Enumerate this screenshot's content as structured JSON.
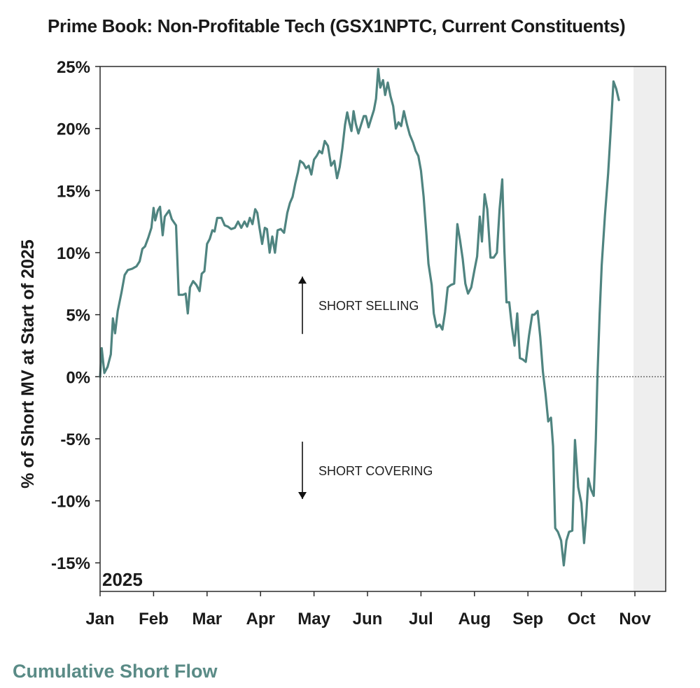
{
  "chart_data": {
    "type": "line",
    "title": "Prime Book: Non-Profitable Tech (GSX1NPTC, Current Constituents)",
    "ylabel": "% of Short MV at Start of 2025",
    "xlabel": "",
    "year_label": "2025",
    "footer": "Cumulative Short Flow",
    "ylim": [
      -17.3,
      25
    ],
    "yticks": [
      25,
      20,
      15,
      10,
      5,
      0,
      -5,
      -10,
      -15
    ],
    "ytick_labels": [
      "25%",
      "20%",
      "15%",
      "10%",
      "5%",
      "0%",
      "-5%",
      "-10%",
      "-15%"
    ],
    "xlim": [
      0,
      11.35
    ],
    "xticks": [
      0,
      1,
      2,
      3,
      4,
      5,
      6,
      7,
      8,
      9,
      10
    ],
    "xtick_labels": [
      "Jan",
      "Feb",
      "Mar",
      "Apr",
      "May",
      "Jun",
      "Jul",
      "Aug",
      "Sep",
      "Oct",
      "Nov"
    ],
    "shaded_region": [
      10,
      11.35
    ],
    "zero_line": true,
    "annotations": [
      {
        "text": "SHORT SELLING",
        "direction": "up",
        "x": 4.05,
        "y": 5.7
      },
      {
        "text": "SHORT COVERING",
        "direction": "down",
        "x": 4.05,
        "y": -7.6
      }
    ],
    "line_color": "#4f8480",
    "series": [
      {
        "points": [
          [
            0.0,
            0.0
          ],
          [
            0.03,
            2.3
          ],
          [
            0.08,
            0.3
          ],
          [
            0.14,
            0.8
          ],
          [
            0.2,
            1.8
          ],
          [
            0.24,
            4.7
          ],
          [
            0.28,
            3.5
          ],
          [
            0.33,
            5.3
          ],
          [
            0.4,
            6.8
          ],
          [
            0.46,
            8.2
          ],
          [
            0.52,
            8.6
          ],
          [
            0.6,
            8.7
          ],
          [
            0.68,
            8.9
          ],
          [
            0.74,
            9.3
          ],
          [
            0.79,
            10.3
          ],
          [
            0.84,
            10.5
          ],
          [
            0.9,
            11.2
          ],
          [
            0.96,
            12.0
          ],
          [
            1.0,
            13.6
          ],
          [
            1.03,
            12.6
          ],
          [
            1.08,
            13.4
          ],
          [
            1.12,
            13.7
          ],
          [
            1.17,
            11.4
          ],
          [
            1.21,
            12.9
          ],
          [
            1.29,
            13.4
          ],
          [
            1.34,
            12.7
          ],
          [
            1.42,
            12.2
          ],
          [
            1.47,
            6.6
          ],
          [
            1.55,
            6.6
          ],
          [
            1.6,
            6.7
          ],
          [
            1.64,
            5.1
          ],
          [
            1.68,
            7.2
          ],
          [
            1.74,
            7.7
          ],
          [
            1.8,
            7.4
          ],
          [
            1.86,
            6.9
          ],
          [
            1.9,
            8.3
          ],
          [
            1.95,
            8.5
          ],
          [
            2.0,
            10.7
          ],
          [
            2.05,
            11.1
          ],
          [
            2.1,
            11.8
          ],
          [
            2.14,
            11.7
          ],
          [
            2.19,
            12.8
          ],
          [
            2.27,
            12.8
          ],
          [
            2.33,
            12.2
          ],
          [
            2.39,
            12.1
          ],
          [
            2.45,
            11.9
          ],
          [
            2.52,
            12.0
          ],
          [
            2.58,
            12.5
          ],
          [
            2.64,
            12.0
          ],
          [
            2.7,
            12.5
          ],
          [
            2.75,
            12.1
          ],
          [
            2.8,
            12.8
          ],
          [
            2.85,
            12.3
          ],
          [
            2.9,
            13.5
          ],
          [
            2.94,
            13.2
          ],
          [
            2.98,
            12.0
          ],
          [
            3.03,
            10.7
          ],
          [
            3.08,
            12.0
          ],
          [
            3.12,
            11.9
          ],
          [
            3.17,
            10.0
          ],
          [
            3.22,
            11.3
          ],
          [
            3.27,
            10.0
          ],
          [
            3.32,
            11.8
          ],
          [
            3.38,
            11.9
          ],
          [
            3.44,
            11.6
          ],
          [
            3.5,
            13.2
          ],
          [
            3.55,
            14.0
          ],
          [
            3.6,
            14.5
          ],
          [
            3.65,
            15.6
          ],
          [
            3.7,
            16.5
          ],
          [
            3.74,
            17.4
          ],
          [
            3.8,
            17.2
          ],
          [
            3.85,
            16.8
          ],
          [
            3.9,
            17.0
          ],
          [
            3.95,
            16.3
          ],
          [
            4.0,
            17.5
          ],
          [
            4.05,
            17.8
          ],
          [
            4.1,
            18.2
          ],
          [
            4.15,
            18.0
          ],
          [
            4.2,
            19.0
          ],
          [
            4.26,
            18.6
          ],
          [
            4.32,
            17.0
          ],
          [
            4.38,
            17.4
          ],
          [
            4.43,
            16.0
          ],
          [
            4.48,
            16.9
          ],
          [
            4.53,
            18.4
          ],
          [
            4.58,
            20.3
          ],
          [
            4.62,
            21.3
          ],
          [
            4.66,
            20.5
          ],
          [
            4.7,
            19.8
          ],
          [
            4.74,
            21.4
          ],
          [
            4.78,
            20.4
          ],
          [
            4.83,
            19.6
          ],
          [
            4.88,
            20.3
          ],
          [
            4.93,
            21.0
          ],
          [
            4.97,
            21.0
          ],
          [
            5.02,
            20.1
          ],
          [
            5.07,
            20.8
          ],
          [
            5.12,
            21.5
          ],
          [
            5.16,
            22.4
          ],
          [
            5.2,
            24.8
          ],
          [
            5.24,
            23.3
          ],
          [
            5.29,
            23.9
          ],
          [
            5.33,
            22.7
          ],
          [
            5.38,
            23.7
          ],
          [
            5.43,
            22.6
          ],
          [
            5.48,
            21.8
          ],
          [
            5.53,
            20.0
          ],
          [
            5.58,
            20.5
          ],
          [
            5.63,
            20.2
          ],
          [
            5.68,
            21.4
          ],
          [
            5.74,
            20.3
          ],
          [
            5.79,
            19.5
          ],
          [
            5.85,
            18.9
          ],
          [
            5.9,
            18.2
          ],
          [
            5.95,
            17.8
          ],
          [
            6.0,
            16.6
          ],
          [
            6.05,
            14.5
          ],
          [
            6.1,
            11.6
          ],
          [
            6.14,
            9.1
          ],
          [
            6.2,
            7.4
          ],
          [
            6.24,
            5.1
          ],
          [
            6.29,
            4.0
          ],
          [
            6.35,
            4.2
          ],
          [
            6.4,
            3.8
          ],
          [
            6.45,
            5.2
          ],
          [
            6.5,
            7.2
          ],
          [
            6.56,
            7.4
          ],
          [
            6.62,
            7.5
          ],
          [
            6.68,
            12.3
          ],
          [
            6.73,
            11.0
          ],
          [
            6.78,
            9.5
          ],
          [
            6.83,
            7.5
          ],
          [
            6.88,
            6.7
          ],
          [
            6.94,
            7.2
          ],
          [
            7.0,
            8.6
          ],
          [
            7.05,
            9.7
          ],
          [
            7.1,
            12.9
          ],
          [
            7.14,
            10.9
          ],
          [
            7.19,
            14.7
          ],
          [
            7.24,
            13.5
          ],
          [
            7.3,
            9.6
          ],
          [
            7.36,
            9.6
          ],
          [
            7.42,
            10.0
          ],
          [
            7.47,
            13.5
          ],
          [
            7.52,
            15.9
          ],
          [
            7.56,
            10.1
          ],
          [
            7.6,
            6.0
          ],
          [
            7.65,
            6.0
          ],
          [
            7.7,
            4.0
          ],
          [
            7.75,
            2.5
          ],
          [
            7.8,
            5.1
          ],
          [
            7.85,
            1.5
          ],
          [
            7.9,
            1.4
          ],
          [
            7.96,
            1.2
          ],
          [
            8.02,
            3.3
          ],
          [
            8.08,
            5.0
          ],
          [
            8.12,
            5.0
          ],
          [
            8.18,
            5.3
          ],
          [
            8.23,
            3.2
          ],
          [
            8.28,
            0.4
          ],
          [
            8.33,
            -1.4
          ],
          [
            8.38,
            -3.6
          ],
          [
            8.43,
            -3.3
          ],
          [
            8.47,
            -5.6
          ],
          [
            8.51,
            -12.2
          ],
          [
            8.56,
            -12.5
          ],
          [
            8.62,
            -13.2
          ],
          [
            8.67,
            -15.2
          ],
          [
            8.72,
            -13.2
          ],
          [
            8.77,
            -12.5
          ],
          [
            8.83,
            -12.4
          ],
          [
            8.88,
            -5.1
          ],
          [
            8.94,
            -8.9
          ],
          [
            9.0,
            -10.2
          ],
          [
            9.05,
            -13.4
          ],
          [
            9.09,
            -11.2
          ],
          [
            9.13,
            -8.2
          ],
          [
            9.18,
            -9.1
          ],
          [
            9.23,
            -9.6
          ],
          [
            9.27,
            -5.0
          ],
          [
            9.3,
            0.0
          ],
          [
            9.34,
            5.0
          ],
          [
            9.38,
            9.0
          ],
          [
            9.44,
            13.0
          ],
          [
            9.5,
            16.4
          ],
          [
            9.55,
            20.0
          ],
          [
            9.6,
            23.8
          ],
          [
            9.65,
            23.2
          ],
          [
            9.7,
            22.3
          ]
        ]
      }
    ]
  }
}
